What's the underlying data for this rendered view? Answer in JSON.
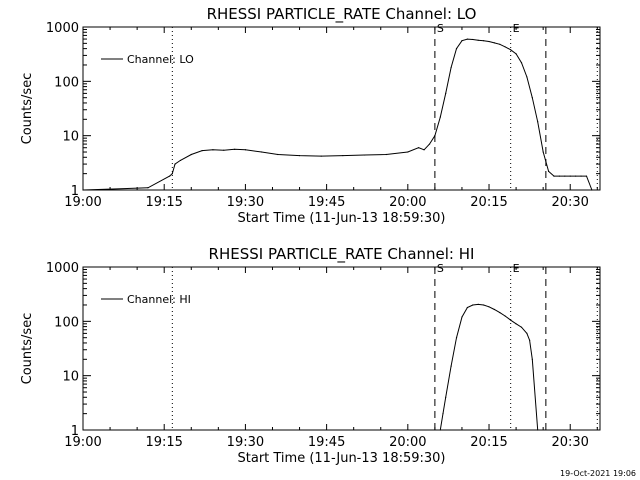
{
  "chart_data": [
    {
      "type": "line",
      "title": "RHESSI PARTICLE_RATE Channel: LO",
      "xlabel": "Start Time (11-Jun-13 18:59:30)",
      "ylabel": "Counts/sec",
      "yscale": "log",
      "ylim": [
        1,
        1000
      ],
      "xlim_minutes": [
        0,
        95.5
      ],
      "x_ticks": [
        "19:00",
        "19:15",
        "19:30",
        "19:45",
        "20:00",
        "20:15",
        "20:30"
      ],
      "y_ticks": [
        "1",
        "10",
        "100",
        "1000"
      ],
      "legend": {
        "label": "Channel: LO",
        "placement": "top-left"
      },
      "markers": [
        {
          "label": "",
          "style": "dotted",
          "x": 16.5
        },
        {
          "label": "S",
          "style": "dashed",
          "x": 65
        },
        {
          "label": "E",
          "style": "dotted",
          "x": 79
        },
        {
          "label": "",
          "style": "dashed",
          "x": 85.5
        },
        {
          "label": "",
          "style": "dotted",
          "x": 95
        }
      ],
      "series": [
        {
          "name": "Channel: LO",
          "x": [
            0,
            12,
            16,
            16.5,
            17,
            18,
            20,
            22,
            24,
            26,
            28,
            30,
            33,
            36,
            40,
            44,
            48,
            52,
            56,
            60,
            62,
            63,
            64,
            65,
            66,
            67,
            68,
            69,
            70,
            71,
            72,
            73,
            74,
            75,
            76,
            77,
            78,
            79,
            80,
            81,
            82,
            83,
            84,
            85,
            86,
            87,
            88,
            89,
            90,
            91,
            92,
            93,
            94
          ],
          "y": [
            1,
            1.1,
            1.8,
            2.0,
            3.0,
            3.5,
            4.5,
            5.3,
            5.5,
            5.4,
            5.6,
            5.5,
            5.0,
            4.5,
            4.3,
            4.2,
            4.3,
            4.4,
            4.5,
            5.0,
            6.0,
            5.5,
            7.0,
            10,
            22,
            60,
            180,
            400,
            560,
            600,
            590,
            570,
            560,
            540,
            510,
            480,
            430,
            380,
            320,
            220,
            120,
            50,
            18,
            5,
            2.2,
            1.8,
            1.8,
            1.8,
            1.8,
            1.8,
            1.8,
            1.8,
            1
          ]
        }
      ]
    },
    {
      "type": "line",
      "title": "RHESSI PARTICLE_RATE Channel: HI",
      "xlabel": "Start Time (11-Jun-13 18:59:30)",
      "ylabel": "Counts/sec",
      "yscale": "log",
      "ylim": [
        1,
        1000
      ],
      "xlim_minutes": [
        0,
        95.5
      ],
      "x_ticks": [
        "19:00",
        "19:15",
        "19:30",
        "19:45",
        "20:00",
        "20:15",
        "20:30"
      ],
      "y_ticks": [
        "1",
        "10",
        "100",
        "1000"
      ],
      "legend": {
        "label": "Channel: HI",
        "placement": "top-left"
      },
      "markers": [
        {
          "label": "",
          "style": "dotted",
          "x": 16.5
        },
        {
          "label": "S",
          "style": "dashed",
          "x": 65
        },
        {
          "label": "E",
          "style": "dotted",
          "x": 79
        },
        {
          "label": "",
          "style": "dashed",
          "x": 85.5
        },
        {
          "label": "",
          "style": "dotted",
          "x": 95
        }
      ],
      "series": [
        {
          "name": "Channel: HI",
          "x": [
            66,
            66.5,
            67,
            68,
            69,
            70,
            71,
            72,
            73,
            74,
            75,
            76,
            77,
            78,
            79,
            80,
            81,
            82,
            82.5,
            83,
            84
          ],
          "y": [
            1,
            2,
            4,
            15,
            50,
            120,
            180,
            200,
            205,
            200,
            185,
            165,
            145,
            125,
            105,
            90,
            78,
            60,
            45,
            20,
            1
          ]
        }
      ]
    }
  ],
  "footer": {
    "timestamp": "19-Oct-2021 19:06"
  }
}
